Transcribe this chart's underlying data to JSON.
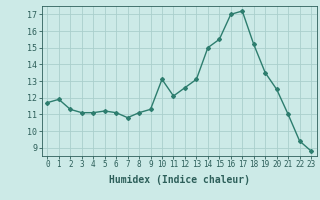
{
  "x": [
    0,
    1,
    2,
    3,
    4,
    5,
    6,
    7,
    8,
    9,
    10,
    11,
    12,
    13,
    14,
    15,
    16,
    17,
    18,
    19,
    20,
    21,
    22,
    23
  ],
  "y": [
    11.7,
    11.9,
    11.3,
    11.1,
    11.1,
    11.2,
    11.1,
    10.8,
    11.1,
    11.3,
    13.1,
    12.1,
    12.6,
    13.1,
    15.0,
    15.5,
    17.0,
    17.2,
    15.2,
    13.5,
    12.5,
    11.0,
    9.4,
    8.8
  ],
  "xlabel": "Humidex (Indice chaleur)",
  "ylim": [
    8.5,
    17.5
  ],
  "xlim": [
    -0.5,
    23.5
  ],
  "yticks": [
    9,
    10,
    11,
    12,
    13,
    14,
    15,
    16,
    17
  ],
  "xtick_labels": [
    "0",
    "1",
    "2",
    "3",
    "4",
    "5",
    "6",
    "7",
    "8",
    "9",
    "10",
    "11",
    "12",
    "13",
    "14",
    "15",
    "16",
    "17",
    "18",
    "19",
    "20",
    "21",
    "22",
    "23"
  ],
  "line_color": "#2d7d6e",
  "marker": "D",
  "marker_size": 2,
  "bg_color": "#cceae7",
  "grid_color": "#aacfcc",
  "font_color": "#2d5f5a",
  "font_family": "monospace"
}
